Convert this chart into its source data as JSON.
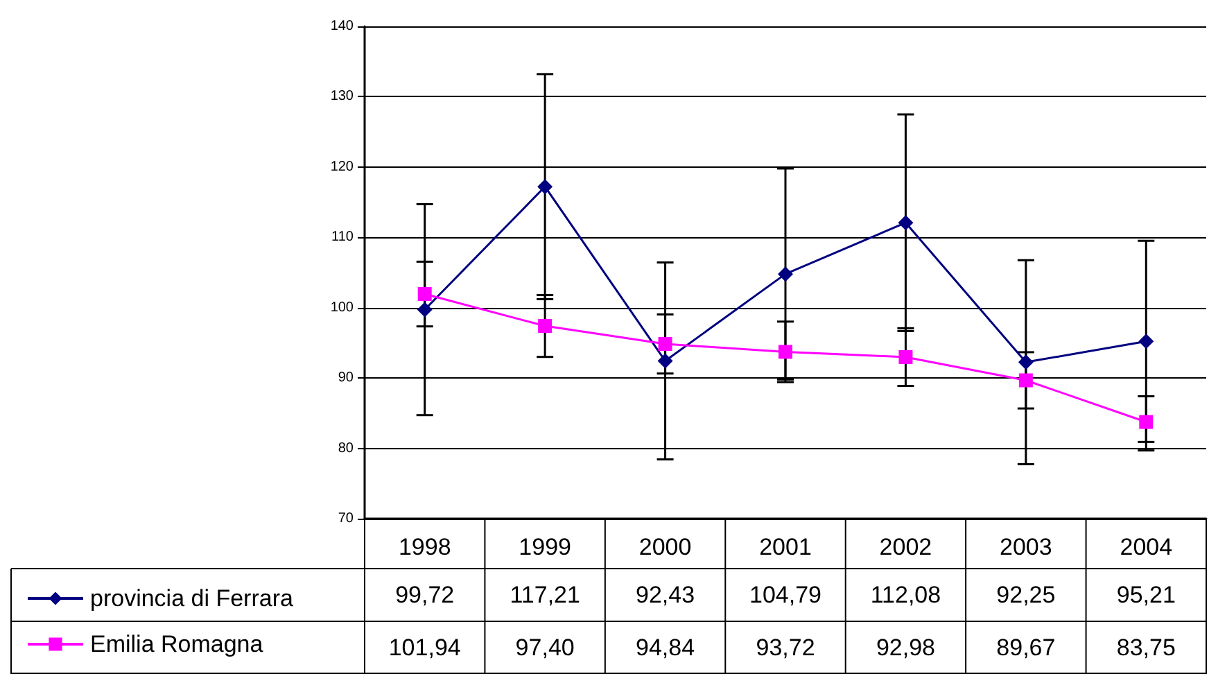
{
  "chart_data": {
    "type": "line",
    "categories": [
      "1998",
      "1999",
      "2000",
      "2001",
      "2002",
      "2003",
      "2004"
    ],
    "series": [
      {
        "name": "provincia di Ferrara",
        "color": "#000080",
        "marker": "diamond",
        "values": [
          99.72,
          117.21,
          92.43,
          104.79,
          112.08,
          92.25,
          95.21
        ],
        "value_labels": [
          "99,72",
          "117,21",
          "92,43",
          "104,79",
          "112,08",
          "92,25",
          "95,21"
        ],
        "errors": [
          15,
          16,
          14,
          15,
          15.4,
          14.5,
          14.3
        ]
      },
      {
        "name": "Emilia Romagna",
        "color": "#ff00ff",
        "marker": "square",
        "values": [
          101.94,
          97.4,
          94.84,
          93.72,
          92.98,
          89.67,
          83.75
        ],
        "value_labels": [
          "101,94",
          "97,40",
          "94,84",
          "93,72",
          "92,98",
          "89,67",
          "83,75"
        ],
        "errors": [
          4.6,
          4.4,
          4.2,
          4.3,
          4.1,
          4,
          [
            79.7,
            87.4
          ]
        ]
      }
    ],
    "ylim": [
      70,
      140
    ],
    "yticks": [
      70,
      80,
      90,
      100,
      110,
      120,
      130,
      140
    ],
    "grid": "y",
    "legend": "bottom left",
    "line_style": "solid"
  }
}
